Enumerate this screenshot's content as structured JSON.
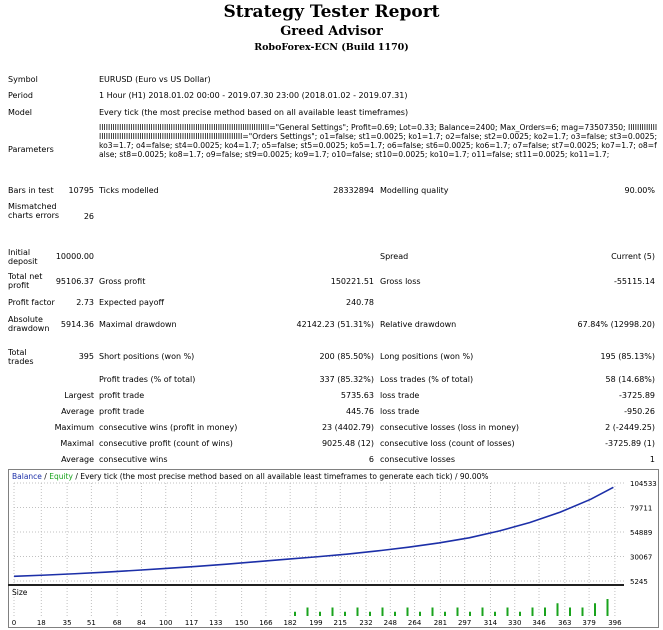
{
  "header": {
    "title": "Strategy Tester Report",
    "advisor": "Greed Advisor",
    "server": "RoboForex-ECN (Build 1170)"
  },
  "info": {
    "symbol_label": "Symbol",
    "symbol": "EURUSD (Euro vs US Dollar)",
    "period_label": "Period",
    "period": "1 Hour (H1) 2018.01.02 00:00 - 2019.07.30 23:00 (2018.01.02 - 2019.07.31)",
    "model_label": "Model",
    "model": "Every tick (the most precise method based on all available least timeframes)",
    "parameters_label": "Parameters",
    "parameters": "IIIIIIIIIIIIIIIIIIIIIIIIIIIIIIIIIIIIIIIIIIIIIIIIIIIIIIIIIIIIIIIIIIIIIIIIIIII=\"General Settings\"; Profit=0.69; Lot=0.33; Balance=2400; Max_Orders=6; mag=73507350; IIIIIIIIIIIIIIIIIIIIIIIIIIIIIIIIIIIIIIIIIIIIIIIIIIIIIIIIIIIIIIIIIIIIIIIIIIIII=\"Orders Settings\"; o1=false; st1=0.0025; ko1=1.7; o2=false; st2=0.0025; ko2=1.7; o3=false; st3=0.0025; ko3=1.7; o4=false; st4=0.0025; ko4=1.7; o5=false; st5=0.0025; ko5=1.7; o6=false; st6=0.0025; ko6=1.7; o7=false; st7=0.0025; ko7=1.7; o8=false; st8=0.0025; ko8=1.7; o9=false; st9=0.0025; ko9=1.7; o10=false; st10=0.0025; ko10=1.7; o11=false; st11=0.0025; ko11=1.7;"
  },
  "stats": {
    "bars_label": "Bars in test",
    "bars": "10795",
    "ticks_label": "Ticks modelled",
    "ticks": "28332894",
    "quality_label": "Modelling quality",
    "quality": "90.00%",
    "mismatched_label": "Mismatched charts errors",
    "mismatched": "26",
    "initial_deposit_label": "Initial deposit",
    "initial_deposit": "10000.00",
    "spread_label": "Spread",
    "spread": "Current (5)",
    "net_profit_label": "Total net profit",
    "net_profit": "95106.37",
    "gross_profit_label": "Gross profit",
    "gross_profit": "150221.51",
    "gross_loss_label": "Gross loss",
    "gross_loss": "-55115.14",
    "profit_factor_label": "Profit factor",
    "profit_factor": "2.73",
    "expected_payoff_label": "Expected payoff",
    "expected_payoff": "240.78",
    "abs_drawdown_label": "Absolute drawdown",
    "abs_drawdown": "5914.36",
    "max_drawdown_label": "Maximal drawdown",
    "max_drawdown": "42142.23 (51.31%)",
    "rel_drawdown_label": "Relative drawdown",
    "rel_drawdown": "67.84% (12998.20)",
    "total_trades_label": "Total trades",
    "total_trades": "395",
    "short_label": "Short positions (won %)",
    "short": "200 (85.50%)",
    "long_label": "Long positions (won %)",
    "long": "195 (85.13%)",
    "profit_trades_label": "Profit trades (% of total)",
    "profit_trades": "337 (85.32%)",
    "loss_trades_label": "Loss trades (% of total)",
    "loss_trades": "58 (14.68%)",
    "largest_label": "Largest",
    "largest_profit_label": "profit trade",
    "largest_profit": "5735.63",
    "largest_loss_label": "loss trade",
    "largest_loss": "-3725.89",
    "average_label": "Average",
    "average_profit_label": "profit trade",
    "average_profit": "445.76",
    "average_loss_label": "loss trade",
    "average_loss": "-950.26",
    "maximum_label": "Maximum",
    "max_cons_wins_label": "consecutive wins (profit in money)",
    "max_cons_wins": "23 (4402.79)",
    "max_cons_losses_label": "consecutive losses (loss in money)",
    "max_cons_losses": "2 (-2449.25)",
    "maximal_label": "Maximal",
    "maximal_cons_profit_label": "consecutive profit (count of wins)",
    "maximal_cons_profit": "9025.48 (12)",
    "maximal_cons_loss_label": "consecutive loss (count of losses)",
    "maximal_cons_loss": "-3725.89 (1)",
    "avg2_label": "Average",
    "avg_cons_wins_label": "consecutive wins",
    "avg_cons_wins": "6",
    "avg_cons_losses_label": "consecutive losses",
    "avg_cons_losses": "1"
  },
  "chart_legend": {
    "balance": "Balance",
    "sep1": " / ",
    "equity": "Equity",
    "rest": " / Every tick (the most precise method based on all available least timeframes to generate each tick) / 90.00%",
    "size": "Size"
  },
  "colors": {
    "balance": "#1c2fa8",
    "equity": "#19a31c",
    "size_bars": "#19a31c",
    "grid": "#c0c0c0"
  },
  "chart_data": {
    "type": "line",
    "title": "Balance / Equity / Every tick (the most precise method based on all available least timeframes to generate each tick) / 90.00%",
    "y_ticks": [
      104533,
      79711,
      54889,
      30067,
      5245
    ],
    "x_ticks": [
      0,
      18,
      35,
      51,
      68,
      84,
      100,
      117,
      133,
      150,
      166,
      182,
      199,
      215,
      232,
      248,
      264,
      281,
      297,
      314,
      330,
      346,
      363,
      379,
      396
    ],
    "ylim": [
      5245,
      104533
    ],
    "xlim": [
      0,
      402
    ],
    "series": [
      {
        "name": "Balance",
        "x": [
          0,
          20,
          40,
          60,
          80,
          100,
          120,
          140,
          160,
          180,
          200,
          220,
          240,
          260,
          280,
          300,
          320,
          340,
          360,
          380,
          395
        ],
        "y": [
          10000,
          11200,
          12600,
          14200,
          16000,
          18000,
          20000,
          22300,
          24800,
          27300,
          29800,
          32500,
          35800,
          39500,
          43800,
          49000,
          56000,
          64500,
          75000,
          88000,
          100200
        ]
      }
    ],
    "size_bars_note": "",
    "size_bars": [
      0.25,
      0.5,
      0.25,
      0.5,
      0.25,
      0.5,
      0.25,
      0.5,
      0.25,
      0.5,
      0.25,
      0.5,
      0.25,
      0.5,
      0.25,
      0.5,
      0.25,
      0.5,
      0.25,
      0.5,
      0.5,
      0.75,
      0.5,
      0.5,
      0.75,
      1
    ]
  }
}
